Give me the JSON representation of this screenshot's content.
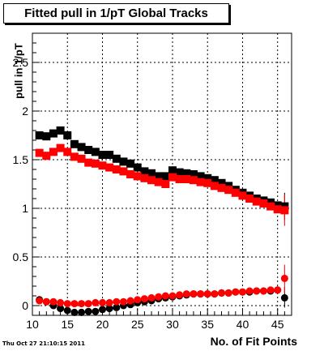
{
  "title": "Fitted pull in 1/pT  Global Tracks",
  "datestamp": "Thu Oct 27 21:10:15 2011",
  "chart_data": {
    "type": "scatter",
    "xlabel": "No. of Fit Points",
    "ylabel": "pull in 1/pT",
    "xlim": [
      10,
      47
    ],
    "ylim": [
      -0.1,
      2.8
    ],
    "grid": true,
    "x_ticks": [
      10,
      15,
      20,
      25,
      30,
      35,
      40,
      45
    ],
    "y_ticks": [
      0,
      0.5,
      1,
      1.5,
      2,
      2.5
    ],
    "x": [
      11,
      12,
      13,
      14,
      15,
      16,
      17,
      18,
      19,
      20,
      21,
      22,
      23,
      24,
      25,
      26,
      27,
      28,
      29,
      30,
      31,
      32,
      33,
      34,
      35,
      36,
      37,
      38,
      39,
      40,
      41,
      42,
      43,
      44,
      45,
      46
    ],
    "series": [
      {
        "color": "#000000",
        "marker": "square",
        "values": [
          1.75,
          1.74,
          1.77,
          1.8,
          1.75,
          1.66,
          1.63,
          1.6,
          1.58,
          1.55,
          1.55,
          1.51,
          1.48,
          1.46,
          1.42,
          1.38,
          1.36,
          1.33,
          1.33,
          1.39,
          1.37,
          1.36,
          1.35,
          1.33,
          1.31,
          1.29,
          1.26,
          1.23,
          1.19,
          1.16,
          1.13,
          1.1,
          1.08,
          1.06,
          1.03,
          1.02
        ]
      },
      {
        "color": "#ff0000",
        "marker": "square",
        "values": [
          1.57,
          1.54,
          1.58,
          1.62,
          1.58,
          1.53,
          1.51,
          1.47,
          1.46,
          1.44,
          1.42,
          1.4,
          1.38,
          1.35,
          1.33,
          1.31,
          1.29,
          1.27,
          1.25,
          1.32,
          1.3,
          1.3,
          1.29,
          1.27,
          1.26,
          1.23,
          1.21,
          1.19,
          1.16,
          1.13,
          1.1,
          1.07,
          1.05,
          1.02,
          0.99,
          0.98
        ]
      },
      {
        "color": "#000000",
        "marker": "circle",
        "values": [
          0.06,
          0.04,
          0.0,
          -0.03,
          -0.05,
          -0.07,
          -0.07,
          -0.06,
          -0.06,
          -0.04,
          -0.03,
          -0.02,
          0.0,
          0.01,
          0.03,
          0.04,
          0.05,
          0.07,
          0.08,
          0.09,
          0.1,
          0.11,
          0.12,
          0.12,
          0.12,
          0.12,
          0.13,
          0.13,
          0.14,
          0.14,
          0.14,
          0.15,
          0.15,
          0.15,
          0.16,
          0.08
        ]
      },
      {
        "color": "#ff0000",
        "marker": "circle",
        "values": [
          0.05,
          0.04,
          0.04,
          0.03,
          0.02,
          0.02,
          0.02,
          0.02,
          0.03,
          0.03,
          0.03,
          0.04,
          0.04,
          0.05,
          0.06,
          0.07,
          0.08,
          0.09,
          0.1,
          0.1,
          0.11,
          0.12,
          0.12,
          0.12,
          0.12,
          0.12,
          0.13,
          0.13,
          0.14,
          0.14,
          0.15,
          0.15,
          0.15,
          0.16,
          0.16,
          0.28
        ]
      }
    ]
  }
}
